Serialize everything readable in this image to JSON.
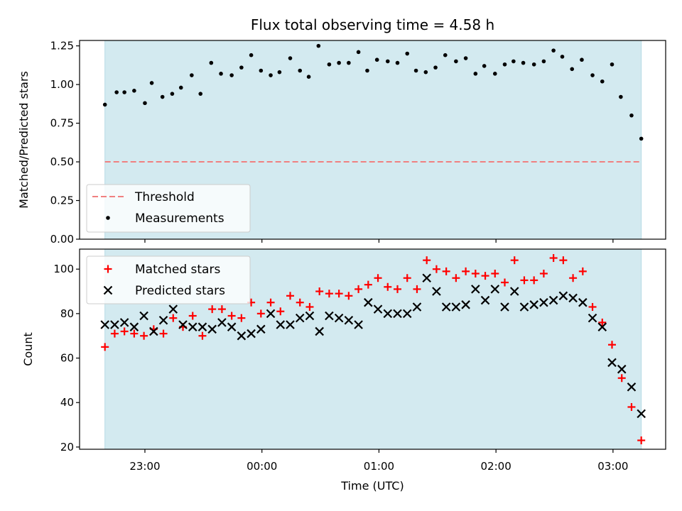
{
  "chart_data": {
    "title": "Flux total observing time = 4.58 h",
    "xlabel": "Time (UTC)",
    "x_tick_labels": [
      "23:00",
      "00:00",
      "01:00",
      "02:00",
      "03:00"
    ],
    "x_ticks_minutes": [
      1380,
      1440,
      1500,
      1560,
      1620
    ],
    "xlim_minutes": [
      1346.5,
      1647
    ],
    "shade_range_minutes": [
      1359.5,
      1634.5
    ],
    "colors": {
      "shade": "#d3eaf0",
      "threshold": "#f08080",
      "matched": "#ff0000",
      "predicted": "#000000",
      "measurements": "#000000"
    },
    "top": {
      "type": "scatter",
      "ylabel": "Matched/Predicted stars",
      "ylim": [
        0,
        1.285
      ],
      "yticks": [
        0.0,
        0.25,
        0.5,
        0.75,
        1.0,
        1.25
      ],
      "ytick_labels": [
        "0.00",
        "0.25",
        "0.50",
        "0.75",
        "1.00",
        "1.25"
      ],
      "threshold": 0.5,
      "legend_location": "lower-left",
      "legend": [
        {
          "label": "Threshold",
          "style": "dashed-line"
        },
        {
          "label": "Measurements",
          "style": "dot"
        }
      ],
      "measurements_x": [
        1359.5,
        1365.5,
        1369.5,
        1374.5,
        1380,
        1383.5,
        1389,
        1394,
        1398.5,
        1404,
        1408.5,
        1414,
        1419,
        1424.5,
        1429.5,
        1434.5,
        1439.5,
        1444.5,
        1449,
        1454.5,
        1459.5,
        1464,
        1469,
        1474.5,
        1479.5,
        1484.5,
        1489.5,
        1494,
        1499,
        1504.5,
        1509.5,
        1514.5,
        1519,
        1524,
        1529,
        1534,
        1539.5,
        1544.5,
        1549.5,
        1554,
        1559.5,
        1564.5,
        1569,
        1574,
        1579.5,
        1584.5,
        1589.5,
        1594,
        1599,
        1604,
        1609.5,
        1614.5,
        1619.5,
        1624,
        1629.5,
        1634.5
      ],
      "measurements_y": [
        0.87,
        0.95,
        0.95,
        0.96,
        0.88,
        1.01,
        0.92,
        0.94,
        0.98,
        1.06,
        0.94,
        1.14,
        1.07,
        1.06,
        1.11,
        1.19,
        1.09,
        1.06,
        1.08,
        1.17,
        1.09,
        1.05,
        1.25,
        1.13,
        1.14,
        1.14,
        1.21,
        1.09,
        1.16,
        1.15,
        1.14,
        1.2,
        1.09,
        1.08,
        1.11,
        1.19,
        1.15,
        1.17,
        1.07,
        1.12,
        1.07,
        1.13,
        1.15,
        1.14,
        1.13,
        1.15,
        1.22,
        1.18,
        1.1,
        1.16,
        1.06,
        1.02,
        1.13,
        0.92,
        0.8,
        0.65
      ]
    },
    "bottom": {
      "type": "scatter",
      "ylabel": "Count",
      "ylim": [
        19,
        109
      ],
      "yticks": [
        20,
        40,
        60,
        80,
        100
      ],
      "ytick_labels": [
        "20",
        "40",
        "60",
        "80",
        "100"
      ],
      "legend_location": "upper-left",
      "legend": [
        {
          "label": "Matched stars",
          "style": "plus"
        },
        {
          "label": "Predicted stars",
          "style": "cross"
        }
      ],
      "matched_x": [
        1359.5,
        1364.5,
        1369.5,
        1374.5,
        1379.5,
        1384.5,
        1389.5,
        1394.5,
        1399.5,
        1404.5,
        1409.5,
        1414.5,
        1419.5,
        1424.5,
        1429.5,
        1434.5,
        1439.5,
        1444.5,
        1449.5,
        1454.5,
        1459.5,
        1464.5,
        1469.5,
        1474.5,
        1479.5,
        1484.5,
        1489.5,
        1494.5,
        1499.5,
        1504.5,
        1509.5,
        1514.5,
        1519.5,
        1524.5,
        1529.5,
        1534.5,
        1539.5,
        1544.5,
        1549.5,
        1554.5,
        1559.5,
        1564.5,
        1569.5,
        1574.5,
        1579.5,
        1584.5,
        1589.5,
        1594.5,
        1599.5,
        1604.5,
        1609.5,
        1614.5,
        1619.5,
        1624.5,
        1629.5,
        1634.5
      ],
      "matched_y": [
        65,
        71,
        72,
        71,
        70,
        73,
        71,
        78,
        74,
        79,
        70,
        82,
        82,
        79,
        78,
        85,
        80,
        85,
        81,
        88,
        85,
        83,
        90,
        89,
        89,
        88,
        91,
        93,
        96,
        92,
        91,
        96,
        91,
        104,
        100,
        99,
        96,
        99,
        98,
        97,
        98,
        94,
        104,
        95,
        95,
        98,
        105,
        104,
        96,
        99,
        83,
        76,
        66,
        51,
        38,
        23
      ],
      "predicted_x": [
        1359.5,
        1364.5,
        1369.5,
        1374.5,
        1379.5,
        1384.5,
        1389.5,
        1394.5,
        1399.5,
        1404.5,
        1409.5,
        1414.5,
        1419.5,
        1424.5,
        1429.5,
        1434.5,
        1439.5,
        1444.5,
        1449.5,
        1454.5,
        1459.5,
        1464.5,
        1469.5,
        1474.5,
        1479.5,
        1484.5,
        1489.5,
        1494.5,
        1499.5,
        1504.5,
        1509.5,
        1514.5,
        1519.5,
        1524.5,
        1529.5,
        1534.5,
        1539.5,
        1544.5,
        1549.5,
        1554.5,
        1559.5,
        1564.5,
        1569.5,
        1574.5,
        1579.5,
        1584.5,
        1589.5,
        1594.5,
        1599.5,
        1604.5,
        1609.5,
        1614.5,
        1619.5,
        1624.5,
        1629.5,
        1634.5
      ],
      "predicted_y": [
        75,
        75,
        76,
        74,
        79,
        72,
        77,
        82,
        75,
        74,
        74,
        73,
        76,
        74,
        70,
        71,
        73,
        80,
        75,
        75,
        78,
        79,
        72,
        79,
        78,
        77,
        75,
        85,
        82,
        80,
        80,
        80,
        83,
        96,
        90,
        83,
        83,
        84,
        91,
        86,
        91,
        83,
        90,
        83,
        84,
        85,
        86,
        88,
        87,
        85,
        78,
        74,
        58,
        55,
        47,
        35
      ]
    }
  }
}
